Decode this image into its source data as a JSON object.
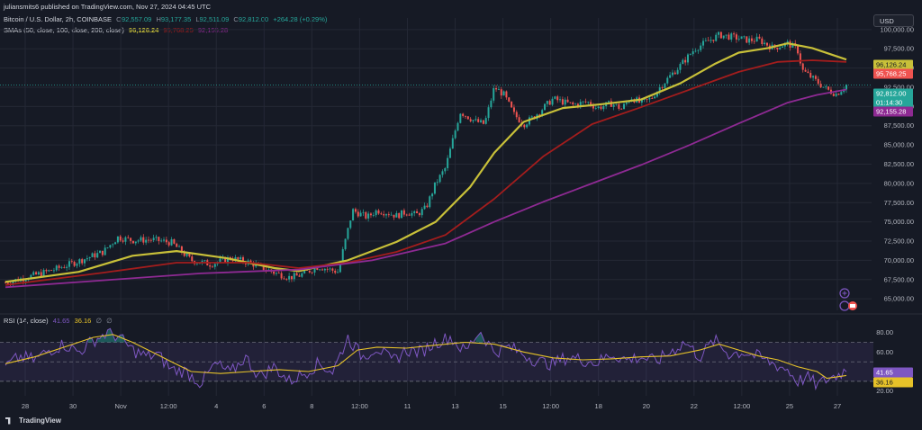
{
  "header": {
    "publisher": "juliansmits6 published on TradingView.com, Nov 27, 2024 04:45 UTC",
    "symbol": "Bitcoin / U.S. Dollar, 2h, COINBASE",
    "o_label": "O",
    "o_value": "92,557.09",
    "h_label": "H",
    "h_value": "93,177.35",
    "l_label": "L",
    "l_value": "92,511.09",
    "c_label": "C",
    "c_value": "92,812.00",
    "change": "+264.28 (+0.29%)",
    "sma_label": "SMAs (50, close, 100, close, 200, close)",
    "sma50_value": "96,126.24",
    "sma100_value": "95,768.25",
    "sma200_value": "92,155.28",
    "currency": "USD"
  },
  "rsi_header": {
    "label": "RSI (14, close)",
    "rsi_value": "41.65",
    "ma_value": "36.16",
    "icons": [
      "∅",
      "∅"
    ]
  },
  "price_tags": {
    "sma50": "96,126.24",
    "sma100": "95,768.25",
    "last": "92,812.00",
    "countdown": "01:14:30",
    "sma200": "92,155.28"
  },
  "rsi_tags": {
    "rsi": "41.65",
    "ma": "36.16"
  },
  "footer": {
    "logo": "TradingView"
  },
  "colors": {
    "up": "#26a69a",
    "down": "#ef5350",
    "sma50": "#c8c039",
    "sma100": "#a31d1d",
    "sma200": "#8e2a93",
    "rsi": "#7e57c2",
    "rsi_ma": "#e6c229",
    "grid": "#242835"
  },
  "chart_data": [
    {
      "type": "candlestick",
      "title": "Bitcoin / U.S. Dollar, 2h, COINBASE",
      "x_ticks": [
        "28",
        "30",
        "Nov",
        "12:00",
        "4",
        "6",
        "8",
        "12:00",
        "11",
        "13",
        "15",
        "12:00",
        "18",
        "20",
        "22",
        "12:00",
        "25",
        "27"
      ],
      "y_ticks": [
        65000,
        67500,
        70000,
        72500,
        75000,
        77500,
        80000,
        82500,
        85000,
        87500,
        90000,
        92500,
        95000,
        97500,
        100000
      ],
      "ylim": [
        63500,
        101500
      ],
      "close_path": {
        "x": [
          0,
          5,
          10,
          15,
          20,
          23,
          26,
          30,
          34,
          38,
          42,
          46,
          50,
          55,
          58,
          60,
          64,
          68,
          71,
          74,
          76,
          78,
          80,
          82,
          84,
          86,
          88,
          90,
          93,
          96,
          98,
          100,
          102,
          104,
          106,
          108,
          112,
          116,
          119,
          121,
          124,
          126,
          128,
          130,
          132,
          134,
          136,
          138,
          141,
          144,
          146,
          149,
          152,
          154,
          157,
          160,
          162,
          163,
          165,
          168,
          170,
          172
        ],
        "y": [
          67100,
          67900,
          68800,
          69900,
          71100,
          73000,
          72600,
          72700,
          72300,
          70000,
          69500,
          70300,
          69700,
          68400,
          67800,
          68000,
          69200,
          68500,
          76500,
          75600,
          76500,
          76200,
          75800,
          76300,
          75900,
          76800,
          80000,
          82000,
          89300,
          88100,
          87700,
          92500,
          91500,
          89000,
          87700,
          88600,
          91000,
          90200,
          90600,
          89800,
          90400,
          89700,
          91200,
          90400,
          91000,
          92600,
          94000,
          95300,
          97500,
          98600,
          99300,
          99000,
          98600,
          98700,
          97600,
          98200,
          97400,
          94700,
          93700,
          92200,
          91600,
          92800
        ]
      },
      "series": [
        {
          "name": "SMA 50",
          "x": [
            0,
            15,
            26,
            35,
            45,
            55,
            60,
            70,
            80,
            88,
            95,
            100,
            106,
            114,
            122,
            130,
            138,
            145,
            150,
            156,
            160,
            165,
            172
          ],
          "y": [
            67200,
            68500,
            70600,
            71200,
            70300,
            69000,
            68600,
            70000,
            72400,
            75000,
            79500,
            84000,
            88000,
            89800,
            90300,
            90900,
            93000,
            95500,
            97000,
            97600,
            98200,
            97600,
            96100
          ]
        },
        {
          "name": "SMA 100",
          "x": [
            0,
            20,
            35,
            50,
            60,
            70,
            80,
            90,
            100,
            110,
            120,
            130,
            140,
            150,
            158,
            165,
            172
          ],
          "y": [
            66800,
            68400,
            69700,
            69700,
            69000,
            69700,
            71100,
            73300,
            78000,
            83500,
            87700,
            89900,
            92200,
            94500,
            95800,
            96000,
            95800
          ]
        },
        {
          "name": "SMA 200",
          "x": [
            0,
            20,
            40,
            60,
            75,
            90,
            100,
            110,
            120,
            130,
            140,
            150,
            160,
            166,
            172
          ],
          "y": [
            66500,
            67400,
            68300,
            68800,
            70000,
            72200,
            75000,
            77600,
            80000,
            82400,
            85000,
            87800,
            90500,
            91500,
            92200
          ]
        }
      ]
    },
    {
      "type": "line",
      "title": "RSI (14, close)",
      "y_ticks": [
        20,
        40,
        60,
        80
      ],
      "ylim": [
        17,
        87
      ],
      "bands": {
        "upper": 70,
        "middle": 50,
        "lower": 30
      },
      "series": [
        {
          "name": "RSI",
          "x": [
            0,
            3,
            6,
            9,
            12,
            15,
            18,
            21,
            23,
            26,
            29,
            31,
            34,
            37,
            40,
            43,
            46,
            49,
            52,
            55,
            58,
            61,
            64,
            67,
            70,
            73,
            76,
            79,
            82,
            85,
            88,
            91,
            94,
            97,
            100,
            103,
            106,
            109,
            112,
            115,
            118,
            121,
            124,
            127,
            130,
            133,
            136,
            139,
            142,
            145,
            148,
            151,
            154,
            157,
            160,
            162,
            164,
            166,
            168,
            170,
            172
          ],
          "y": [
            45,
            55,
            52,
            62,
            68,
            60,
            72,
            80,
            76,
            62,
            55,
            58,
            42,
            40,
            28,
            48,
            38,
            55,
            35,
            45,
            30,
            38,
            48,
            40,
            75,
            55,
            65,
            50,
            62,
            60,
            70,
            75,
            60,
            82,
            60,
            65,
            58,
            50,
            48,
            55,
            52,
            49,
            58,
            52,
            55,
            50,
            60,
            70,
            55,
            72,
            58,
            60,
            55,
            48,
            42,
            30,
            34,
            26,
            32,
            36,
            42
          ]
        },
        {
          "name": "RSI MA",
          "x": [
            0,
            6,
            12,
            18,
            22,
            26,
            30,
            34,
            38,
            44,
            50,
            56,
            62,
            68,
            72,
            76,
            82,
            88,
            94,
            100,
            106,
            112,
            118,
            124,
            130,
            136,
            142,
            146,
            150,
            154,
            158,
            162,
            166,
            168,
            172
          ],
          "y": [
            48,
            55,
            65,
            75,
            78,
            70,
            60,
            50,
            40,
            38,
            40,
            42,
            40,
            46,
            62,
            65,
            64,
            67,
            70,
            68,
            60,
            54,
            52,
            53,
            55,
            56,
            62,
            68,
            62,
            56,
            52,
            45,
            40,
            33,
            36
          ]
        }
      ]
    }
  ]
}
